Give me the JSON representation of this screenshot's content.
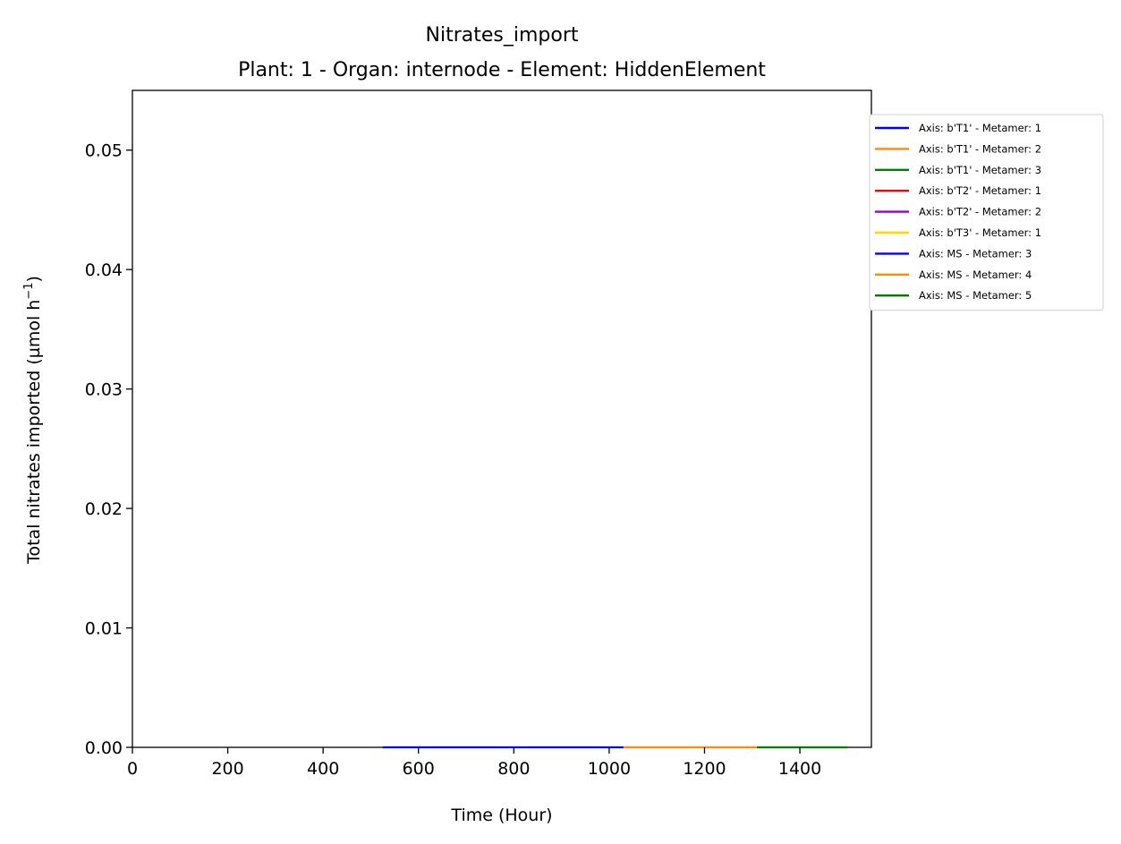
{
  "chart_data": {
    "type": "line",
    "title": "Nitrates_import",
    "subtitle": "Plant: 1 - Organ: internode - Element: HiddenElement",
    "xlabel": "Time (Hour)",
    "ylabel_text": "Total nitrates imported (µmol h",
    "ylabel_sup": "−1",
    "ylabel_close": ")",
    "xlim": [
      0,
      1550
    ],
    "ylim": [
      0,
      0.055
    ],
    "xticks": [
      0,
      200,
      400,
      600,
      800,
      1000,
      1200,
      1400
    ],
    "xtick_labels": [
      "0",
      "200",
      "400",
      "600",
      "800",
      "1000",
      "1200",
      "1400"
    ],
    "yticks": [
      0,
      0.01,
      0.02,
      0.03,
      0.04,
      0.05
    ],
    "ytick_labels": [
      "0.00",
      "0.01",
      "0.02",
      "0.03",
      "0.04",
      "0.05"
    ],
    "grid": false,
    "legend_position": "outside-right-top",
    "series": [
      {
        "name": "Axis: b'T1' - Metamer: 1",
        "color": "#0000ff",
        "x": [],
        "y": []
      },
      {
        "name": "Axis: b'T1' - Metamer: 2",
        "color": "#ff8c00",
        "x": [],
        "y": []
      },
      {
        "name": "Axis: b'T1' - Metamer: 3",
        "color": "#008000",
        "x": [],
        "y": []
      },
      {
        "name": "Axis: b'T2' - Metamer: 1",
        "color": "#ff0000",
        "x": [],
        "y": []
      },
      {
        "name": "Axis: b'T2' - Metamer: 2",
        "color": "#9400d3",
        "x": [],
        "y": []
      },
      {
        "name": "Axis: b'T3' - Metamer: 1",
        "color": "#ffd700",
        "x": [],
        "y": []
      },
      {
        "name": "Axis: MS - Metamer: 3",
        "color": "#0000ff",
        "x": [
          525,
          1030
        ],
        "y": [
          0,
          0
        ]
      },
      {
        "name": "Axis: MS - Metamer: 4",
        "color": "#ff8c00",
        "x": [
          1030,
          1310
        ],
        "y": [
          0,
          0
        ]
      },
      {
        "name": "Axis: MS - Metamer: 5",
        "color": "#008000",
        "x": [
          1310,
          1500
        ],
        "y": [
          0,
          0
        ]
      }
    ]
  }
}
